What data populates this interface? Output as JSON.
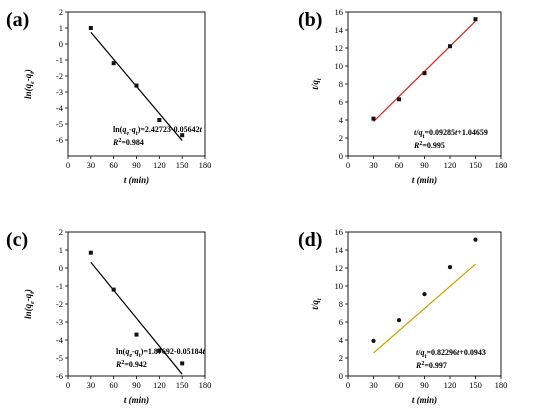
{
  "chart_data": [
    {
      "panel": "(a)",
      "type": "scatter",
      "xlabel": "t (min)",
      "ylabel": "ln(qe-qt)",
      "xlim": [
        0,
        180
      ],
      "ylim": [
        -7,
        2
      ],
      "xticks": [
        0,
        30,
        60,
        90,
        120,
        150,
        180
      ],
      "yticks": [
        -6,
        -5,
        -4,
        -3,
        -2,
        -1,
        0,
        1,
        2
      ],
      "x": [
        30,
        60,
        90,
        120,
        150
      ],
      "y": [
        1.0,
        -1.2,
        -2.6,
        -4.75,
        -5.7
      ],
      "marker": "square",
      "fit": {
        "intercept": 2.42723,
        "slope": -0.05642,
        "x_range": [
          30,
          150
        ],
        "color": "#000000"
      },
      "equation": "ln(qe-qt)=2.42723-0.05642t",
      "r2": "R2=0.984"
    },
    {
      "panel": "(b)",
      "type": "scatter",
      "xlabel": "t (min)",
      "ylabel": "t/qt",
      "xlim": [
        0,
        180
      ],
      "ylim": [
        0,
        16
      ],
      "xticks": [
        0,
        30,
        60,
        90,
        120,
        150,
        180
      ],
      "yticks": [
        0,
        2,
        4,
        6,
        8,
        10,
        12,
        14,
        16
      ],
      "x": [
        30,
        60,
        90,
        120,
        150
      ],
      "y": [
        4.15,
        6.3,
        9.2,
        12.2,
        15.2
      ],
      "marker": "square",
      "fit": {
        "intercept": 1.04659,
        "slope": 0.09285,
        "x_range": [
          30,
          150
        ],
        "color": "#e02020"
      },
      "equation": "t/qt=0.09285t+1.04659",
      "r2": "R2=0.995"
    },
    {
      "panel": "(c)",
      "type": "scatter",
      "xlabel": "t (min)",
      "ylabel": "ln(qe-qt)",
      "xlim": [
        0,
        180
      ],
      "ylim": [
        -6,
        2
      ],
      "xticks": [
        0,
        30,
        60,
        90,
        120,
        150,
        180
      ],
      "yticks": [
        -6,
        -5,
        -4,
        -3,
        -2,
        -1,
        0,
        1,
        2
      ],
      "x": [
        30,
        60,
        90,
        120,
        150
      ],
      "y": [
        0.85,
        -1.2,
        -3.7,
        -4.6,
        -5.3
      ],
      "marker": "square",
      "fit": {
        "intercept": 1.87692,
        "slope": -0.05184,
        "x_range": [
          30,
          150
        ],
        "color": "#000000"
      },
      "equation": "ln(qe-qt)=1.87692-0.05184t",
      "r2": "R2=0.942"
    },
    {
      "panel": "(d)",
      "type": "scatter",
      "xlabel": "t (min)",
      "ylabel": "t/qt",
      "xlim": [
        0,
        180
      ],
      "ylim": [
        0,
        16
      ],
      "xticks": [
        0,
        30,
        60,
        90,
        120,
        150,
        180
      ],
      "yticks": [
        0,
        2,
        4,
        6,
        8,
        10,
        12,
        14,
        16
      ],
      "x": [
        30,
        60,
        90,
        120,
        150
      ],
      "y": [
        3.9,
        6.2,
        9.1,
        12.1,
        15.15
      ],
      "marker": "circle",
      "fit": {
        "intercept": 0.0943,
        "slope": 0.82296,
        "x_range": [
          30,
          150
        ],
        "color": "#c8a000",
        "slope_per": 10
      },
      "equation": "t/qt=0.82296t+0.0943",
      "r2": "R2=0.997"
    }
  ]
}
